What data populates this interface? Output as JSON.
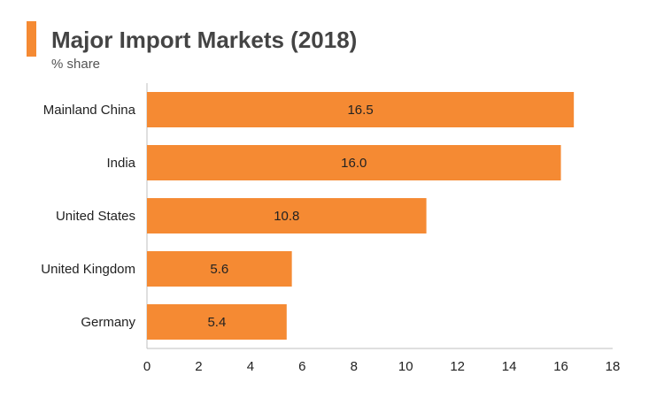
{
  "header": {
    "title": "Major Import Markets (2018)",
    "subtitle": "% share"
  },
  "colors": {
    "accent": "#F58A33",
    "bar": "#F58A33",
    "axis": "#BFBFBF"
  },
  "chart_data": {
    "type": "bar",
    "orientation": "horizontal",
    "title": "Major Import Markets (2018)",
    "subtitle": "% share",
    "categories": [
      "Mainland China",
      "India",
      "United States",
      "United Kingdom",
      "Germany"
    ],
    "values": [
      16.5,
      16.0,
      10.8,
      5.6,
      5.4
    ],
    "data_labels": [
      "16.5",
      "16.0",
      "10.8",
      "5.6",
      "5.4"
    ],
    "xlim": [
      0,
      18
    ],
    "xticks": [
      0,
      2,
      4,
      6,
      8,
      10,
      12,
      14,
      16,
      18
    ],
    "grid": false,
    "legend": "none"
  }
}
